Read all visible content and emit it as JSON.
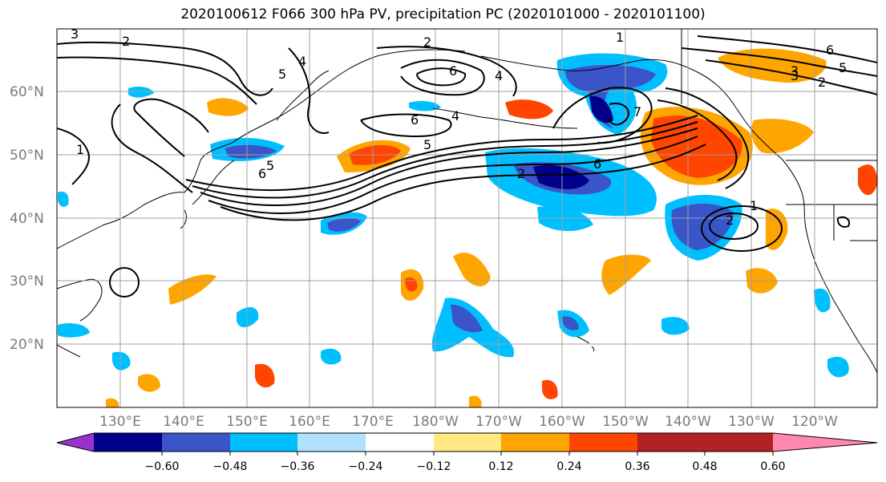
{
  "title": "2020100612 F066 300 hPa PV, precipitation PC (2020101000 - 2020101100)",
  "map": {
    "lat_labels": [
      "60°N",
      "50°N",
      "40°N",
      "30°N",
      "20°N"
    ],
    "lon_labels": [
      "130°E",
      "140°E",
      "150°E",
      "160°E",
      "170°E",
      "180°W",
      "170°W",
      "160°W",
      "150°W",
      "140°W",
      "130°W",
      "120°W"
    ],
    "contour_labels": [
      "1",
      "2",
      "3",
      "4",
      "5",
      "6",
      "7",
      "6",
      "5",
      "4",
      "2",
      "1",
      "2",
      "3",
      "5",
      "6",
      "6",
      "5",
      "4",
      "2",
      "1",
      "3",
      "2",
      "6"
    ]
  },
  "colorbar": {
    "tick_labels": [
      "−0.60",
      "−0.48",
      "−0.36",
      "−0.24",
      "−0.12",
      "0.12",
      "0.24",
      "0.36",
      "0.48",
      "0.60"
    ],
    "colors": [
      "#9932cc",
      "#00008b",
      "#3a55c8",
      "#00bfff",
      "#b0e2ff",
      "#ffffff",
      "#ffe985",
      "#ffa500",
      "#ff4500",
      "#b22222",
      "#ff88b0"
    ]
  }
}
